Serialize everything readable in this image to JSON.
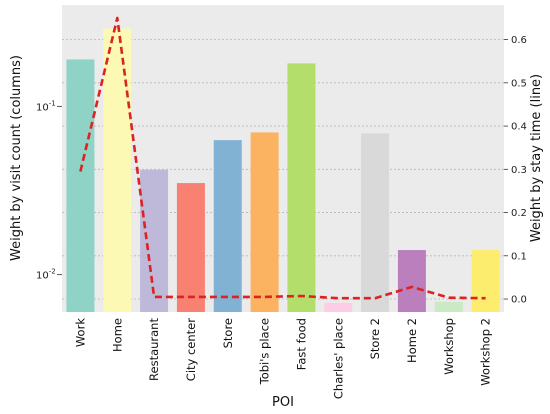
{
  "chart_data": {
    "type": "bar",
    "title": "",
    "xlabel": "POI",
    "ylabel": "Weight by visit count (columns)",
    "ylabel_right": "Weight by stay time (line)",
    "categories": [
      "Work",
      "Home",
      "Restaurant",
      "City center",
      "Store",
      "Tobi's place",
      "Fast food",
      "Charles' place",
      "Store 2",
      "Home 2",
      "Workshop",
      "Workshop 2"
    ],
    "values": [
      0.19,
      0.29,
      0.042,
      0.035,
      0.063,
      0.07,
      0.18,
      0.0068,
      0.069,
      0.014,
      0.0069,
      0.014
    ],
    "bar_colors": [
      "#8fd3c7",
      "#fbf9b4",
      "#beb9d8",
      "#f88172",
      "#81b1d3",
      "#fbb261",
      "#b4de6b",
      "#fccde4",
      "#d9d9d9",
      "#bb7fbd",
      "#cbeac4",
      "#fded6e"
    ],
    "yscale": "log",
    "ylim": [
      0.006,
      0.4
    ],
    "y_ticks": [
      {
        "base": "10",
        "exp": "-1",
        "value": 0.1
      },
      {
        "base": "10",
        "exp": "-2",
        "value": 0.01
      }
    ],
    "line": {
      "values": [
        0.295,
        0.65,
        0.005,
        0.005,
        0.005,
        0.005,
        0.007,
        0.002,
        0.002,
        0.028,
        0.003,
        0.002
      ],
      "color": "#dd2222",
      "style": "dashed",
      "ylim": [
        -0.03,
        0.68
      ],
      "ticks": [
        "0.0",
        "0.1",
        "0.2",
        "0.3",
        "0.4",
        "0.5",
        "0.6"
      ]
    },
    "grid": true,
    "background": "#ebebeb",
    "ylabel_right_color": "#dd2222"
  }
}
